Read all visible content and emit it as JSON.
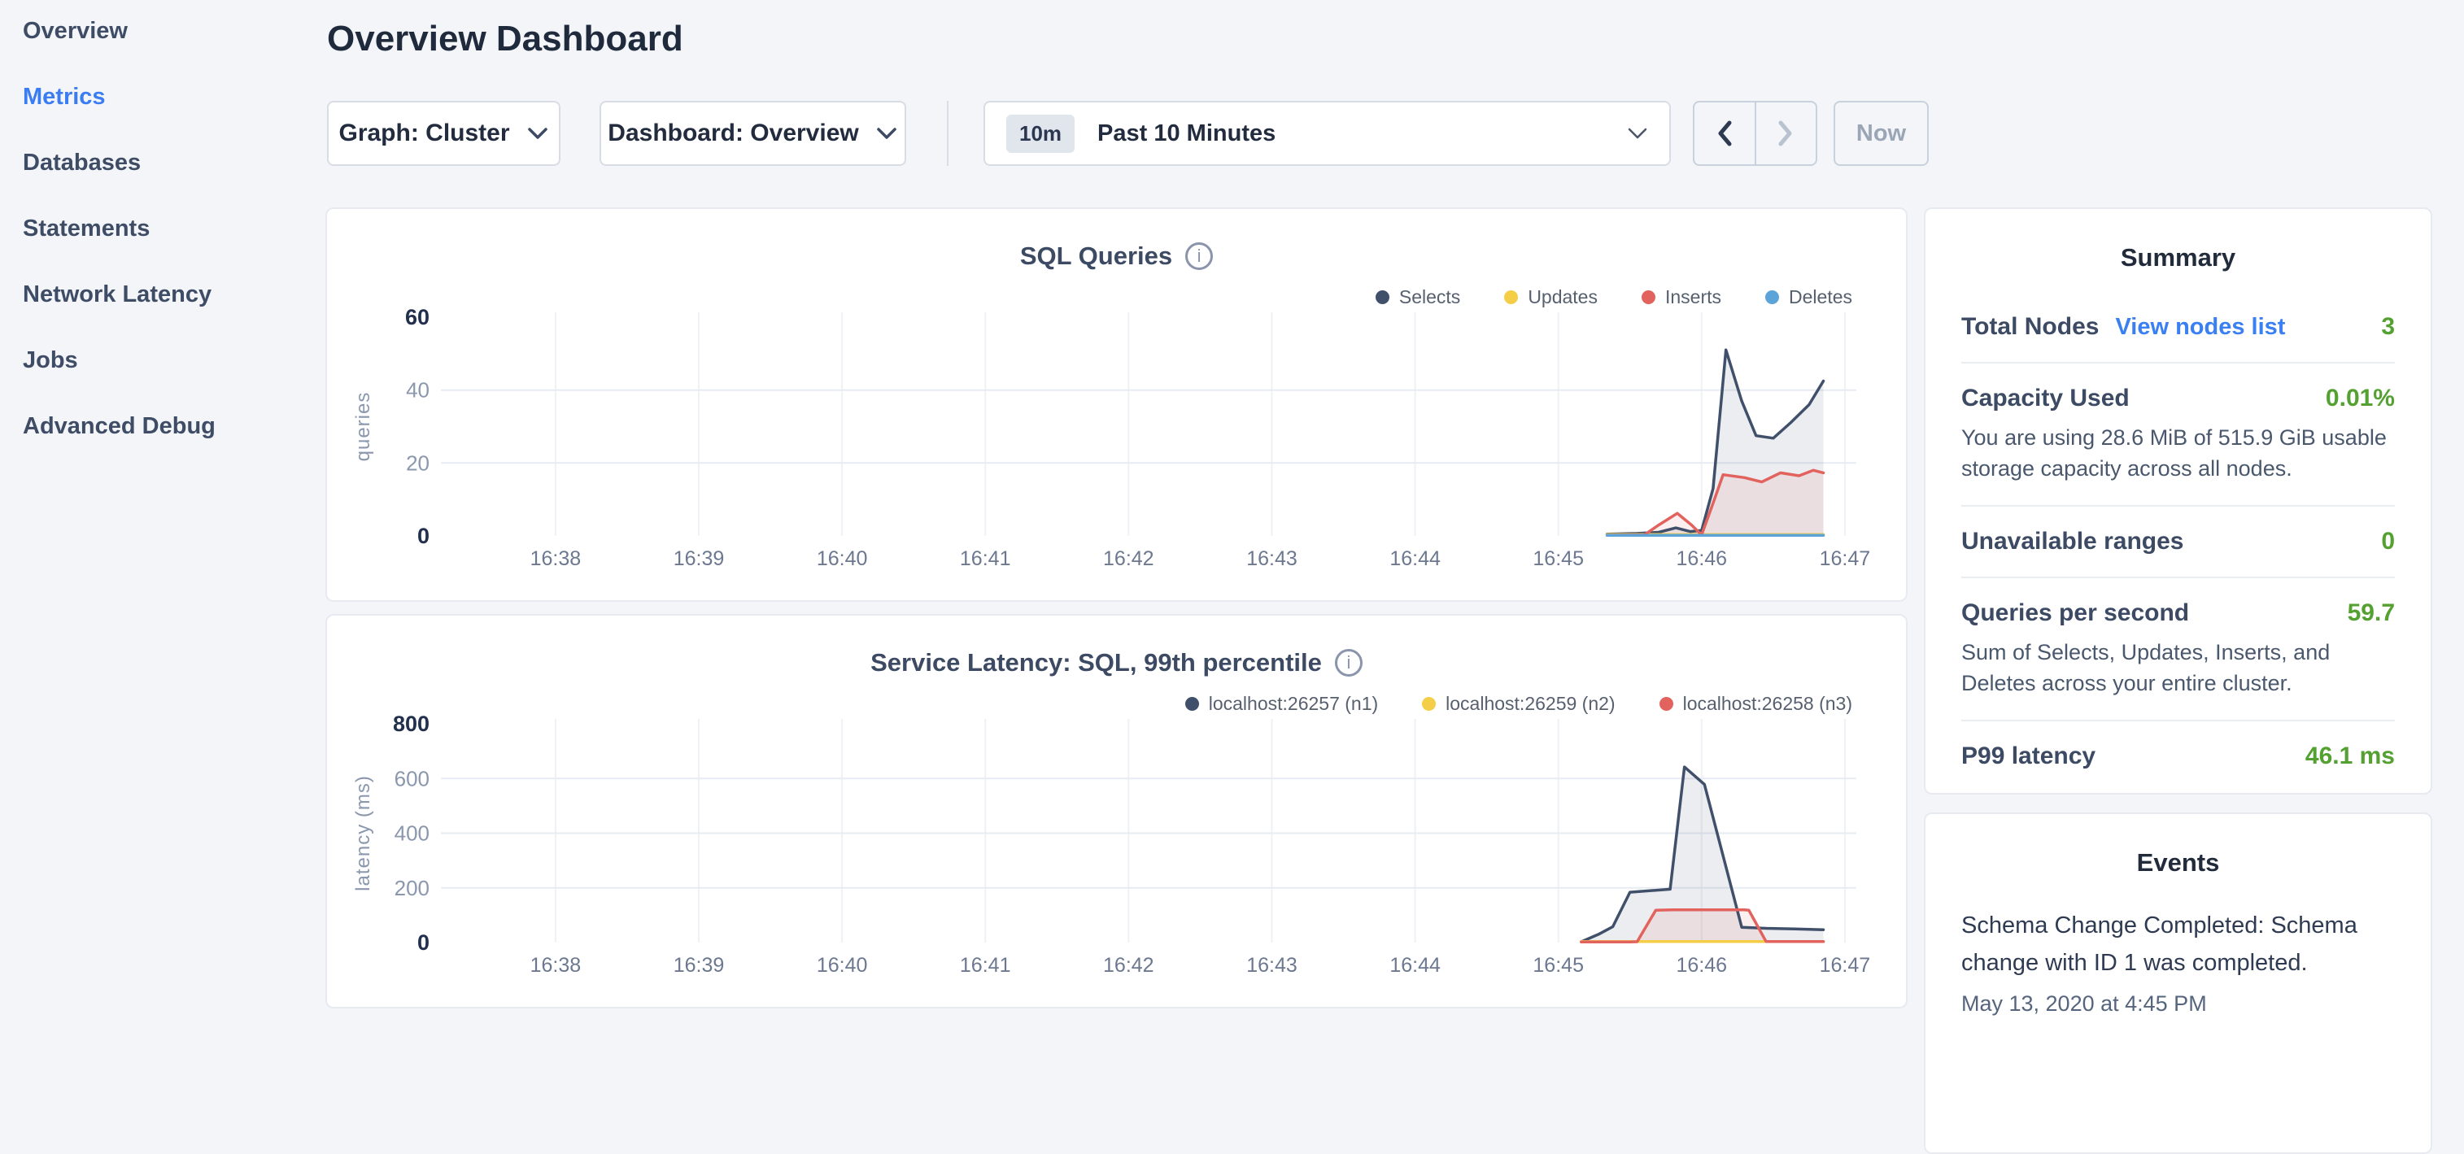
{
  "sidebar": {
    "items": [
      {
        "label": "Overview",
        "active": false
      },
      {
        "label": "Metrics",
        "active": true
      },
      {
        "label": "Databases",
        "active": false
      },
      {
        "label": "Statements",
        "active": false
      },
      {
        "label": "Network Latency",
        "active": false
      },
      {
        "label": "Jobs",
        "active": false
      },
      {
        "label": "Advanced Debug",
        "active": false
      }
    ]
  },
  "header": {
    "title": "Overview Dashboard"
  },
  "controls": {
    "graph_dropdown_label": "Graph: Cluster",
    "dashboard_dropdown_label": "Dashboard: Overview",
    "time_badge": "10m",
    "time_label": "Past 10 Minutes",
    "now_label": "Now"
  },
  "summary": {
    "title": "Summary",
    "rows": [
      {
        "label": "Total Nodes",
        "link": "View nodes list",
        "value": "3"
      },
      {
        "label": "Capacity Used",
        "value": "0.01%",
        "description": "You are using 28.6 MiB of 515.9 GiB usable storage capacity across all nodes."
      },
      {
        "label": "Unavailable ranges",
        "value": "0"
      },
      {
        "label": "Queries per second",
        "value": "59.7",
        "description": "Sum of Selects, Updates, Inserts, and Deletes across your entire cluster."
      },
      {
        "label": "P99 latency",
        "value": "46.1 ms"
      }
    ]
  },
  "events": {
    "title": "Events",
    "items": [
      {
        "text": "Schema Change Completed: Schema change with ID 1 was completed.",
        "timestamp": "May 13, 2020 at 4:45 PM"
      }
    ]
  },
  "colors": {
    "accent_blue": "#3a7df2",
    "green": "#54a131",
    "series_navy": "#41506a",
    "series_yellow": "#f5ce48",
    "series_red": "#e2625e",
    "series_blue": "#5ba3d9"
  },
  "chart_data": [
    {
      "type": "line",
      "title": "SQL Queries",
      "ylabel": "queries",
      "xlabel": "",
      "y_max": 60,
      "y_ticks": [
        0,
        20,
        40,
        60
      ],
      "x_domain": [
        37.2,
        47.08
      ],
      "x_ticks": [
        {
          "v": 38,
          "label": "16:38"
        },
        {
          "v": 39,
          "label": "16:39"
        },
        {
          "v": 40,
          "label": "16:40"
        },
        {
          "v": 41,
          "label": "16:41"
        },
        {
          "v": 42,
          "label": "16:42"
        },
        {
          "v": 43,
          "label": "16:43"
        },
        {
          "v": 44,
          "label": "16:44"
        },
        {
          "v": 45,
          "label": "16:45"
        },
        {
          "v": 46,
          "label": "16:46"
        },
        {
          "v": 47,
          "label": "16:47"
        }
      ],
      "grid": true,
      "legend_position": "top-right",
      "series": [
        {
          "name": "Selects",
          "color": "#41506a",
          "fill": "rgba(65,80,106,0.10)",
          "points": [
            [
              45.34,
              0.5
            ],
            [
              45.55,
              0.7
            ],
            [
              45.7,
              1
            ],
            [
              45.82,
              2.2
            ],
            [
              45.92,
              1.2
            ],
            [
              46.0,
              1.5
            ],
            [
              46.08,
              13
            ],
            [
              46.17,
              51
            ],
            [
              46.28,
              37
            ],
            [
              46.38,
              27.5
            ],
            [
              46.5,
              26.8
            ],
            [
              46.62,
              31
            ],
            [
              46.75,
              36
            ],
            [
              46.85,
              42.5
            ]
          ]
        },
        {
          "name": "Updates",
          "color": "#f5ce48",
          "points": [
            [
              45.34,
              0.4
            ],
            [
              46.85,
              0.4
            ]
          ]
        },
        {
          "name": "Inserts",
          "color": "#e2625e",
          "fill": "rgba(226,98,94,0.10)",
          "points": [
            [
              45.34,
              0.2
            ],
            [
              45.6,
              0.3
            ],
            [
              45.7,
              3
            ],
            [
              45.83,
              6.2
            ],
            [
              45.93,
              3
            ],
            [
              46.0,
              0.3
            ],
            [
              46.08,
              9
            ],
            [
              46.15,
              16.8
            ],
            [
              46.3,
              16
            ],
            [
              46.42,
              14.8
            ],
            [
              46.55,
              17.3
            ],
            [
              46.68,
              16.5
            ],
            [
              46.78,
              18
            ],
            [
              46.85,
              17.3
            ]
          ]
        },
        {
          "name": "Deletes",
          "color": "#5ba3d9",
          "points": [
            [
              45.34,
              0.15
            ],
            [
              46.85,
              0.15
            ]
          ]
        }
      ]
    },
    {
      "type": "line",
      "title": "Service Latency: SQL, 99th percentile",
      "ylabel": "latency (ms)",
      "xlabel": "",
      "y_max": 800,
      "y_ticks": [
        0,
        200,
        400,
        600,
        800
      ],
      "x_domain": [
        37.2,
        47.08
      ],
      "x_ticks": [
        {
          "v": 38,
          "label": "16:38"
        },
        {
          "v": 39,
          "label": "16:39"
        },
        {
          "v": 40,
          "label": "16:40"
        },
        {
          "v": 41,
          "label": "16:41"
        },
        {
          "v": 42,
          "label": "16:42"
        },
        {
          "v": 43,
          "label": "16:43"
        },
        {
          "v": 44,
          "label": "16:44"
        },
        {
          "v": 45,
          "label": "16:45"
        },
        {
          "v": 46,
          "label": "16:46"
        },
        {
          "v": 47,
          "label": "16:47"
        }
      ],
      "grid": true,
      "legend_position": "top-right",
      "series": [
        {
          "name": "localhost:26257 (n1)",
          "color": "#41506a",
          "fill": "rgba(65,80,106,0.10)",
          "points": [
            [
              45.16,
              3
            ],
            [
              45.28,
              30
            ],
            [
              45.38,
              58
            ],
            [
              45.5,
              184
            ],
            [
              45.6,
              188
            ],
            [
              45.78,
              195
            ],
            [
              45.88,
              642
            ],
            [
              46.02,
              578
            ],
            [
              46.28,
              56
            ],
            [
              46.45,
              52
            ],
            [
              46.65,
              50
            ],
            [
              46.85,
              47
            ]
          ]
        },
        {
          "name": "localhost:26259 (n2)",
          "color": "#f5ce48",
          "points": [
            [
              45.16,
              4
            ],
            [
              46.85,
              4
            ]
          ]
        },
        {
          "name": "localhost:26258 (n3)",
          "color": "#e2625e",
          "fill": "rgba(226,98,94,0.10)",
          "points": [
            [
              45.16,
              2
            ],
            [
              45.5,
              2
            ],
            [
              45.55,
              3
            ],
            [
              45.68,
              118
            ],
            [
              45.8,
              120
            ],
            [
              46.3,
              120
            ],
            [
              46.33,
              118
            ],
            [
              46.45,
              4
            ],
            [
              46.85,
              4
            ]
          ]
        }
      ]
    }
  ]
}
